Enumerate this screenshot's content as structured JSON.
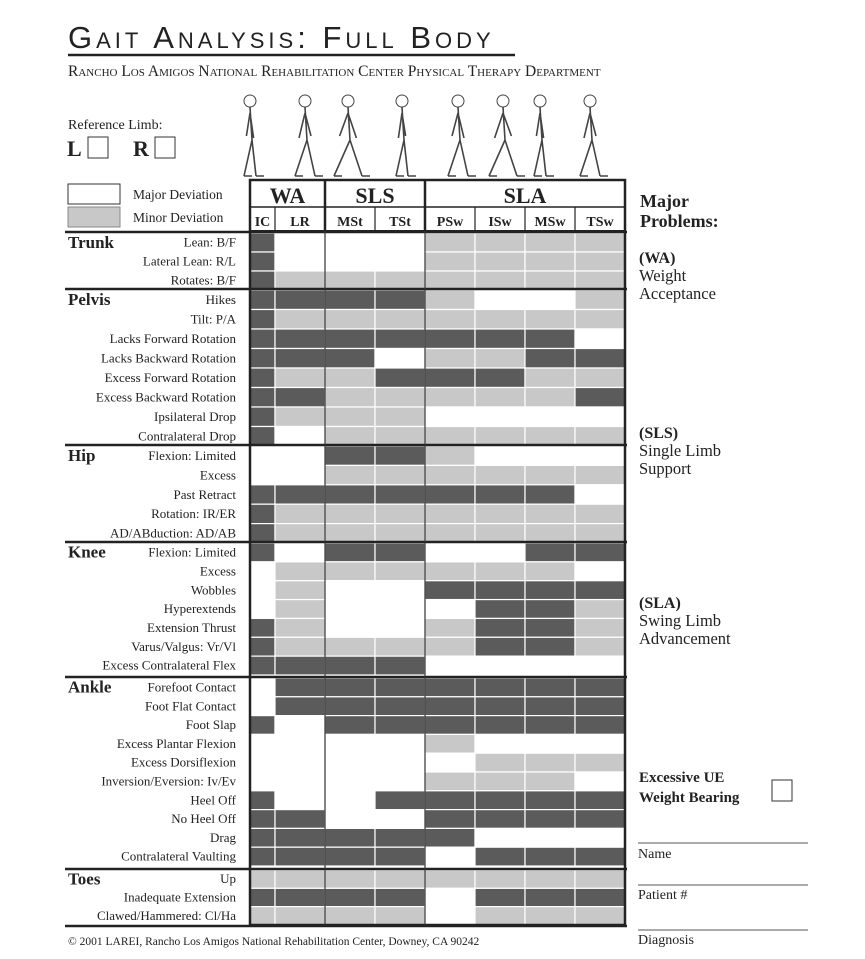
{
  "header": {
    "title": "Gait Analysis: Full Body",
    "subtitle": "Rancho Los Amigos National Rehabilitation Center Physical Therapy Department"
  },
  "reference_limb": {
    "label": "Reference Limb:",
    "left": "L",
    "right": "R"
  },
  "legend": [
    "Major Deviation",
    "Minor Deviation"
  ],
  "phases": [
    {
      "name": "WA",
      "columns": [
        "IC",
        "LR"
      ]
    },
    {
      "name": "SLS",
      "columns": [
        "MSt",
        "TSt"
      ]
    },
    {
      "name": "SLA",
      "columns": [
        "PSw",
        "ISw",
        "MSw",
        "TSw"
      ]
    }
  ],
  "sections": [
    {
      "name": "Trunk",
      "rows": [
        "Lean: B/F",
        "Lateral Lean: R/L",
        "Rotates: B/F"
      ]
    },
    {
      "name": "Pelvis",
      "rows": [
        "Hikes",
        "Tilt: P/A",
        "Lacks Forward Rotation",
        "Lacks Backward Rotation",
        "Excess Forward Rotation",
        "Excess Backward Rotation",
        "Ipsilateral  Drop",
        "Contralateral  Drop"
      ]
    },
    {
      "name": "Hip",
      "rows": [
        "Flexion: Limited",
        "Excess",
        "Past Retract",
        "Rotation: IR/ER",
        "AD/ABduction: AD/AB"
      ]
    },
    {
      "name": "Knee",
      "rows": [
        "Flexion: Limited",
        "Excess",
        "Wobbles",
        "Hyperextends",
        "Extension Thrust",
        "Varus/Valgus: Vr/Vl",
        "Excess Contralateral Flex"
      ]
    },
    {
      "name": "Ankle",
      "rows": [
        "Forefoot Contact",
        "Foot Flat Contact",
        "Foot Slap",
        "Excess Plantar Flexion",
        "Excess Dorsiflexion",
        "Inversion/Eversion: Iv/Ev",
        "Heel Off",
        "No Heel Off",
        "Drag",
        "Contralateral Vaulting"
      ]
    },
    {
      "name": "Toes",
      "rows": [
        "Up",
        "Inadequate Extension",
        "Clawed/Hammered: Cl/Ha"
      ]
    }
  ],
  "problems": {
    "title": [
      "Major",
      "Problems:"
    ],
    "items": [
      {
        "code": "(WA)",
        "lines": [
          "Weight",
          "Acceptance"
        ]
      },
      {
        "code": "(SLS)",
        "lines": [
          "Single Limb",
          "Support"
        ]
      },
      {
        "code": "(SLA)",
        "lines": [
          "Swing Limb",
          "Advancement"
        ]
      }
    ]
  },
  "excessive_ue": [
    "Excessive UE",
    "Weight Bearing"
  ],
  "fields": [
    "Name",
    "Patient #",
    "Diagnosis"
  ],
  "footer": "© 2001 LAREI, Rancho Los Amigos National Rehabilitation Center, Downey, CA 90242"
}
